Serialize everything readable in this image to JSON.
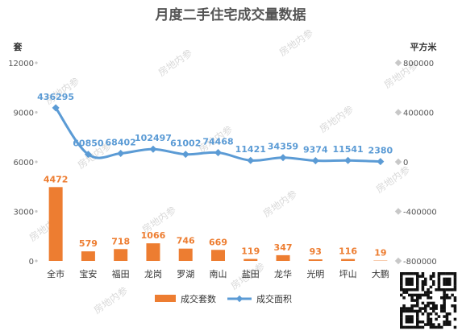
{
  "chart_data": {
    "type": "bar+line",
    "title": "月度二手住宅成交量数据",
    "y_left_unit": "套",
    "y_right_unit": "平方米",
    "categories": [
      "全市",
      "宝安",
      "福田",
      "龙岗",
      "罗湖",
      "南山",
      "盐田",
      "龙华",
      "光明",
      "坪山",
      "大鹏"
    ],
    "series": [
      {
        "name": "成交套数",
        "type": "bar",
        "axis": "left",
        "color": "#ED7D31",
        "values": [
          4472,
          579,
          718,
          1066,
          746,
          669,
          119,
          347,
          93,
          116,
          19
        ]
      },
      {
        "name": "成交面积",
        "type": "line",
        "axis": "right",
        "color": "#5B9BD5",
        "values": [
          436295,
          60850,
          68402,
          102497,
          61002,
          74468,
          11421,
          34359,
          9374,
          11541,
          2380
        ]
      }
    ],
    "y_left": {
      "min": 0,
      "max": 12000,
      "ticks": [
        "0",
        "3000",
        "6000",
        "9000",
        "12000"
      ]
    },
    "y_right": {
      "min": -800000,
      "max": 800000,
      "ticks": [
        "-800000",
        "-400000",
        "0",
        "400000",
        "800000"
      ]
    },
    "legend_position": "bottom",
    "grid": false,
    "watermark": "房地内参"
  }
}
